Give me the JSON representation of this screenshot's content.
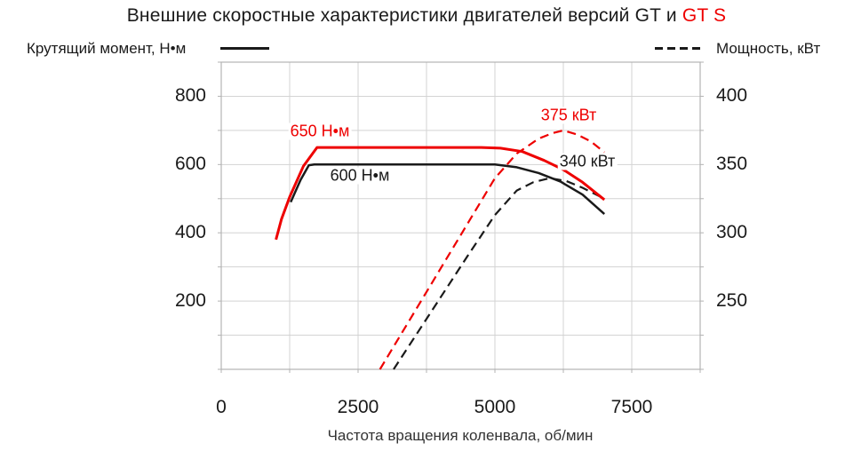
{
  "title": {
    "prefix": "Внешние скоростные характеристики двигателей версий GT и ",
    "highlight": "GT S"
  },
  "legend": {
    "left_label": "Крутящий момент, Н•м",
    "right_label": "Мощность, кВт"
  },
  "axes": {
    "x_title": "Частота вращения коленвала, об/мин",
    "x_ticks": [
      0,
      2500,
      5000,
      7500
    ],
    "left_ticks": [
      800,
      600,
      400,
      200
    ],
    "right_ticks": [
      400,
      350,
      300,
      250
    ]
  },
  "annotations": {
    "gts_torque": "650 Н•м",
    "gt_torque": "600 Н•м",
    "gts_power": "375 кВт",
    "gt_power": "340 кВт"
  },
  "colors": {
    "accent_red": "#ee0000",
    "line_black": "#1a1a1a",
    "grid": "#d3d3d3",
    "border": "#b3b3b3"
  },
  "chart_data": {
    "type": "line",
    "title": "Внешние скоростные характеристики двигателей версий GT и GT S",
    "x_axis": {
      "label": "Частота вращения коленвала, об/мин",
      "range": [
        0,
        8750
      ],
      "grid_step": 1250,
      "ticks": [
        0,
        2500,
        5000,
        7500
      ]
    },
    "y_left": {
      "label": "Крутящий момент, Н•м",
      "range": [
        0,
        900
      ],
      "grid_step": 100,
      "ticks": [
        200,
        400,
        600,
        800
      ]
    },
    "y_right": {
      "label": "Мощность, кВт",
      "range": [
        200,
        425
      ],
      "grid_step": 25,
      "ticks": [
        250,
        300,
        350,
        400
      ]
    },
    "grid": true,
    "legend_position": "top",
    "series": [
      {
        "name": "GT power",
        "label": "Мощность GT, кВт",
        "axis": "right",
        "style": "dashed",
        "color": "#1a1a1a",
        "annotation": "340 кВт",
        "points": [
          [
            3150,
            200
          ],
          [
            3800,
            240
          ],
          [
            4500,
            283
          ],
          [
            5000,
            313
          ],
          [
            5400,
            331
          ],
          [
            5700,
            337
          ],
          [
            6000,
            340
          ],
          [
            6300,
            338
          ],
          [
            6600,
            333
          ],
          [
            7000,
            325
          ]
        ]
      },
      {
        "name": "GT torque",
        "label": "Крутящий момент GT, Н•м",
        "axis": "left",
        "style": "solid",
        "color": "#1a1a1a",
        "annotation": "600 Н•м",
        "points": [
          [
            1270,
            490
          ],
          [
            1450,
            555
          ],
          [
            1600,
            598
          ],
          [
            1700,
            600
          ],
          [
            5000,
            600
          ],
          [
            5400,
            592
          ],
          [
            5800,
            575
          ],
          [
            6200,
            550
          ],
          [
            6600,
            512
          ],
          [
            7000,
            455
          ]
        ]
      },
      {
        "name": "GT S power",
        "label": "Мощность GT S, кВт",
        "axis": "right",
        "style": "dashed",
        "color": "#ee0000",
        "annotation": "375 кВт",
        "points": [
          [
            2900,
            200
          ],
          [
            3500,
            240
          ],
          [
            4250,
            290
          ],
          [
            5000,
            340
          ],
          [
            5400,
            358
          ],
          [
            5800,
            369
          ],
          [
            6050,
            373
          ],
          [
            6250,
            375
          ],
          [
            6500,
            372
          ],
          [
            6750,
            367
          ],
          [
            7000,
            359
          ]
        ]
      },
      {
        "name": "GT S torque",
        "label": "Крутящий момент GT S, Н•м",
        "axis": "left",
        "style": "solid",
        "color": "#ee0000",
        "annotation": "650 Н•м",
        "points": [
          [
            1000,
            380
          ],
          [
            1100,
            440
          ],
          [
            1250,
            505
          ],
          [
            1500,
            595
          ],
          [
            1750,
            650
          ],
          [
            4750,
            650
          ],
          [
            5100,
            648
          ],
          [
            5500,
            638
          ],
          [
            5900,
            612
          ],
          [
            6250,
            585
          ],
          [
            6600,
            548
          ],
          [
            7000,
            497
          ]
        ]
      }
    ]
  }
}
